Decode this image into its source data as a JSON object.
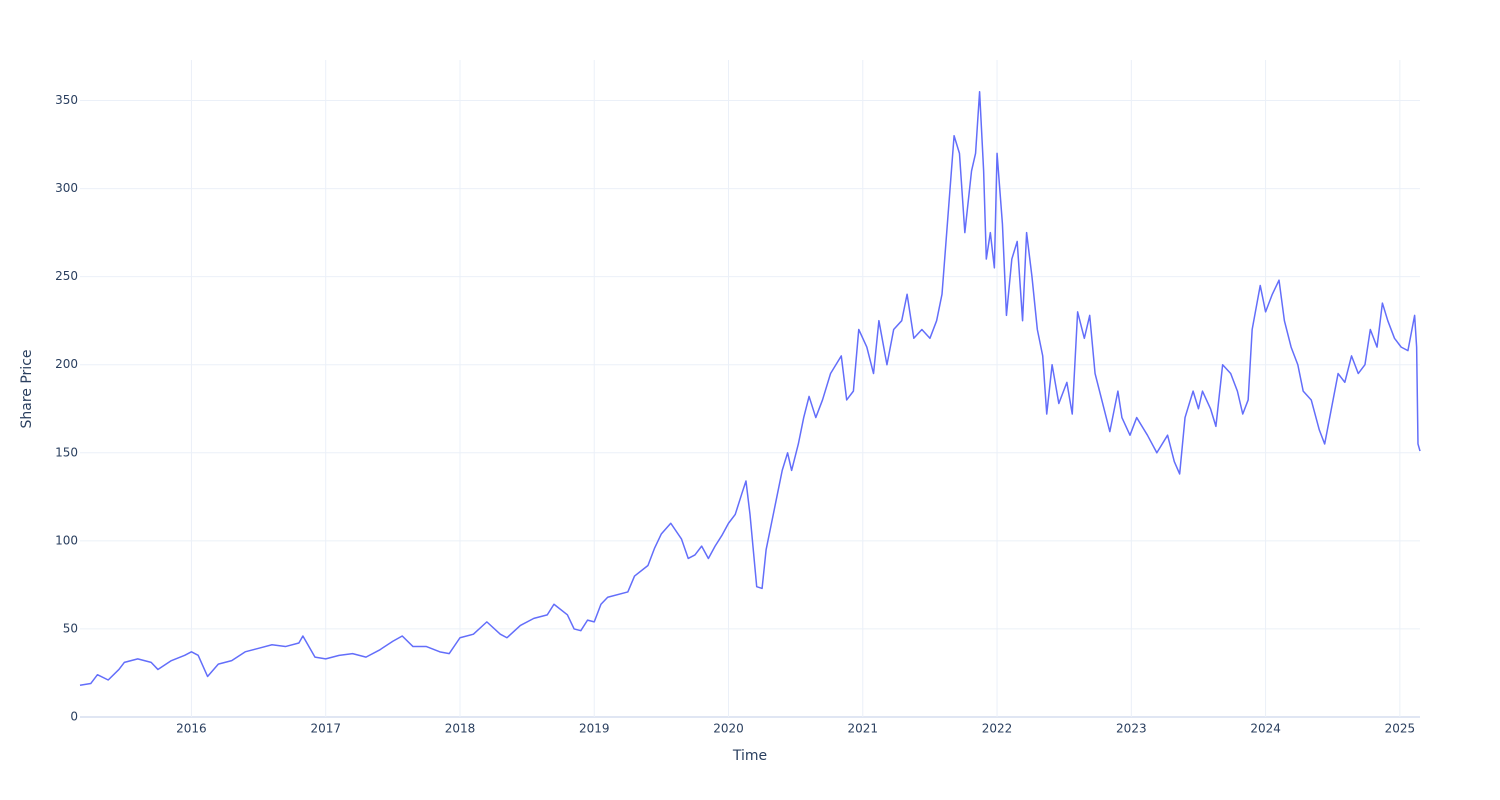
{
  "chart_data": {
    "type": "line",
    "x_label": "Time",
    "y_label": "Share Price",
    "color": "#636efa",
    "grid": true,
    "xlim": [
      2015.17,
      2025.15
    ],
    "xticks": [
      2016,
      2017,
      2018,
      2019,
      2020,
      2021,
      2022,
      2023,
      2024,
      2025
    ],
    "ylim": [
      0,
      373
    ],
    "yticks": [
      0,
      50,
      100,
      150,
      200,
      250,
      300,
      350
    ],
    "x": [
      2015.17,
      2015.25,
      2015.3,
      2015.38,
      2015.46,
      2015.5,
      2015.6,
      2015.7,
      2015.75,
      2015.85,
      2015.95,
      2016.0,
      2016.05,
      2016.12,
      2016.2,
      2016.3,
      2016.4,
      2016.5,
      2016.6,
      2016.7,
      2016.8,
      2016.83,
      2016.92,
      2017.0,
      2017.1,
      2017.2,
      2017.3,
      2017.4,
      2017.5,
      2017.57,
      2017.65,
      2017.75,
      2017.85,
      2017.92,
      2018.0,
      2018.1,
      2018.2,
      2018.3,
      2018.35,
      2018.45,
      2018.55,
      2018.65,
      2018.7,
      2018.8,
      2018.85,
      2018.9,
      2018.95,
      2019.0,
      2019.05,
      2019.1,
      2019.25,
      2019.3,
      2019.4,
      2019.45,
      2019.5,
      2019.57,
      2019.65,
      2019.7,
      2019.75,
      2019.8,
      2019.85,
      2019.9,
      2019.95,
      2020.0,
      2020.05,
      2020.1,
      2020.13,
      2020.16,
      2020.21,
      2020.25,
      2020.28,
      2020.32,
      2020.36,
      2020.4,
      2020.44,
      2020.47,
      2020.52,
      2020.56,
      2020.6,
      2020.65,
      2020.7,
      2020.76,
      2020.84,
      2020.88,
      2020.93,
      2020.97,
      2021.03,
      2021.08,
      2021.12,
      2021.18,
      2021.23,
      2021.29,
      2021.33,
      2021.38,
      2021.44,
      2021.5,
      2021.55,
      2021.59,
      2021.65,
      2021.68,
      2021.72,
      2021.76,
      2021.81,
      2021.84,
      2021.87,
      2021.9,
      2021.92,
      2021.95,
      2021.98,
      2022.0,
      2022.04,
      2022.07,
      2022.11,
      2022.15,
      2022.19,
      2022.22,
      2022.26,
      2022.3,
      2022.34,
      2022.37,
      2022.41,
      2022.46,
      2022.52,
      2022.56,
      2022.6,
      2022.65,
      2022.69,
      2022.73,
      2022.78,
      2022.84,
      2022.9,
      2022.93,
      2022.99,
      2023.04,
      2023.12,
      2023.19,
      2023.27,
      2023.32,
      2023.36,
      2023.4,
      2023.46,
      2023.5,
      2023.53,
      2023.59,
      2023.63,
      2023.68,
      2023.74,
      2023.79,
      2023.83,
      2023.87,
      2023.9,
      2023.96,
      2024.0,
      2024.05,
      2024.1,
      2024.14,
      2024.19,
      2024.24,
      2024.28,
      2024.34,
      2024.4,
      2024.44,
      2024.49,
      2024.54,
      2024.59,
      2024.64,
      2024.69,
      2024.74,
      2024.78,
      2024.83,
      2024.87,
      2024.91,
      2024.96,
      2025.01,
      2025.06,
      2025.11,
      2025.125,
      2025.135,
      2025.15
    ],
    "values": [
      18,
      19,
      24,
      21,
      27,
      31,
      33,
      31,
      27,
      32,
      35,
      37,
      35,
      23,
      30,
      32,
      37,
      39,
      41,
      40,
      42,
      46,
      34,
      33,
      35,
      36,
      34,
      38,
      43,
      46,
      40,
      40,
      37,
      36,
      45,
      47,
      54,
      47,
      45,
      52,
      56,
      58,
      64,
      58,
      50,
      49,
      55,
      54,
      64,
      68,
      71,
      80,
      86,
      96,
      104,
      110,
      101,
      90,
      92,
      97,
      90,
      97,
      103,
      110,
      115,
      127,
      134,
      115,
      74,
      73,
      95,
      110,
      125,
      140,
      150,
      140,
      155,
      170,
      182,
      170,
      180,
      195,
      205,
      180,
      185,
      220,
      210,
      195,
      225,
      200,
      220,
      225,
      240,
      215,
      220,
      215,
      225,
      240,
      300,
      330,
      320,
      275,
      310,
      320,
      355,
      310,
      260,
      275,
      255,
      320,
      280,
      228,
      260,
      270,
      225,
      275,
      250,
      220,
      205,
      172,
      200,
      178,
      190,
      172,
      230,
      215,
      228,
      195,
      180,
      162,
      185,
      170,
      160,
      170,
      160,
      150,
      160,
      145,
      138,
      170,
      185,
      175,
      185,
      175,
      165,
      200,
      195,
      185,
      172,
      180,
      220,
      245,
      230,
      240,
      248,
      225,
      210,
      200,
      185,
      180,
      163,
      155,
      175,
      195,
      190,
      205,
      195,
      200,
      220,
      210,
      235,
      225,
      215,
      210,
      208,
      228,
      210,
      155,
      151
    ]
  }
}
